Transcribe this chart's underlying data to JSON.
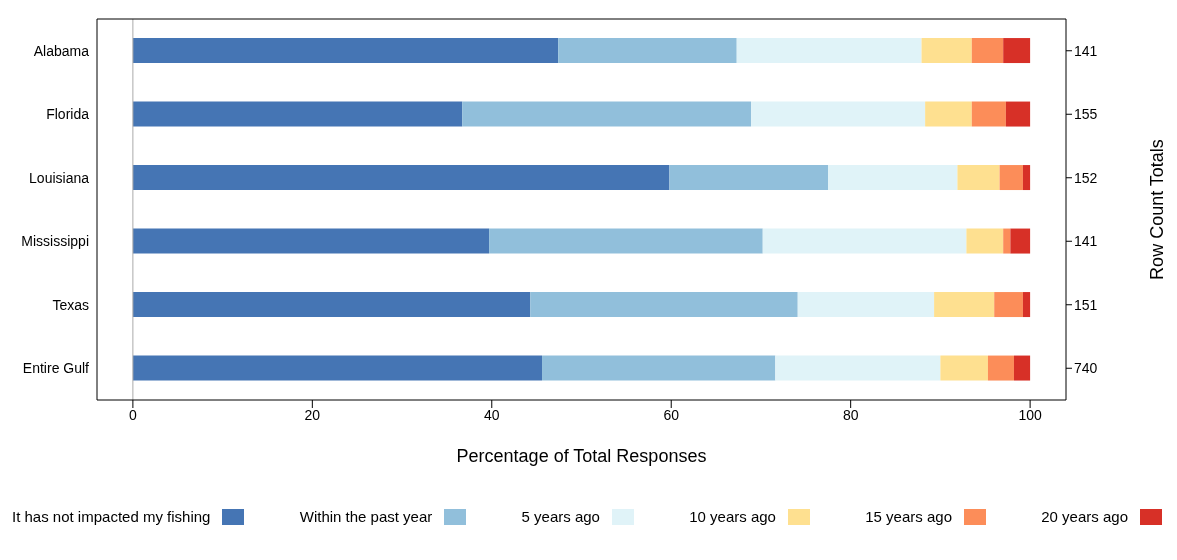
{
  "chart_data": {
    "type": "bar",
    "orientation": "horizontal",
    "stacked": true,
    "xlabel": "Percentage of Total Responses",
    "y2label": "Row Count Totals",
    "categories": [
      "Alabama",
      "Florida",
      "Louisiana",
      "Mississippi",
      "Texas",
      "Entire Gulf"
    ],
    "y2_categories": [
      "141",
      "155",
      "152",
      "141",
      "151",
      "740"
    ],
    "xlim": [
      -4,
      104
    ],
    "xticks": [
      0,
      20,
      40,
      60,
      80,
      100
    ],
    "ref_lines": [
      {
        "axis": "x",
        "value": 0,
        "color": "#aaaaaa"
      }
    ],
    "legend": "bottom",
    "grid": false,
    "series": [
      {
        "name": "It has not impacted my fishing",
        "color": "#4575b4",
        "values": [
          47.4,
          36.7,
          59.8,
          39.7,
          44.3,
          45.6
        ]
      },
      {
        "name": "Within the past year",
        "color": "#91bfdb",
        "values": [
          19.9,
          32.2,
          17.7,
          30.5,
          29.8,
          26.0
        ]
      },
      {
        "name": "5 years ago",
        "color": "#e0f3f8",
        "values": [
          20.6,
          19.4,
          14.4,
          22.7,
          15.2,
          18.4
        ]
      },
      {
        "name": "10 years ago",
        "color": "#fee090",
        "values": [
          5.6,
          5.2,
          4.7,
          4.1,
          6.7,
          5.3
        ]
      },
      {
        "name": "15 years ago",
        "color": "#fc8d59",
        "values": [
          3.5,
          3.8,
          2.6,
          0.8,
          3.2,
          2.9
        ]
      },
      {
        "name": "20 years ago",
        "color": "#d73027",
        "values": [
          3.0,
          2.7,
          0.8,
          2.2,
          0.8,
          1.8
        ]
      }
    ]
  }
}
